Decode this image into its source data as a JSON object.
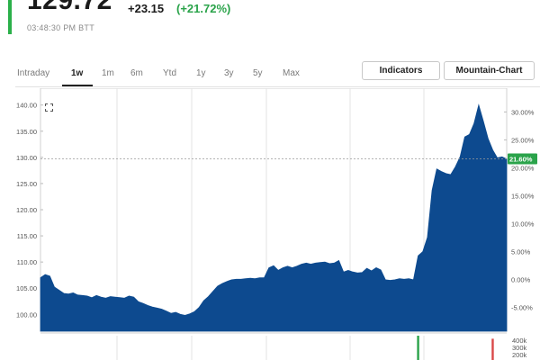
{
  "quote": {
    "price": "129.72",
    "change": "+23.15",
    "change_percent": "(+21.72%)",
    "timestamp": "03:48:30 PM BTT",
    "colors": {
      "positive": "#2aa34a",
      "accent_bar": "#2bb04a"
    }
  },
  "toolbar": {
    "ranges": [
      "Intraday",
      "1w",
      "1m",
      "6m",
      "Ytd",
      "1y",
      "3y",
      "5y",
      "Max"
    ],
    "active_range": "1w",
    "indicators_label": "Indicators",
    "chart_type_label": "Mountain-Chart"
  },
  "chart_data": {
    "type": "area",
    "fill_color": "#0d4a8f",
    "price_axis": {
      "ticks": [
        "140.00",
        "135.00",
        "130.00",
        "125.00",
        "120.00",
        "115.00",
        "110.00",
        "105.00",
        "100.00"
      ],
      "ylim": [
        98.5,
        141.5
      ]
    },
    "percent_axis": {
      "ticks": [
        "30.00%",
        "25.00%",
        "20.00%",
        "15.00%",
        "10.00%",
        "5.00%",
        "0.00%",
        "-5.00%"
      ]
    },
    "current_marker": {
      "value": 129.72,
      "label": "21.60%"
    },
    "volume_axis": {
      "ticks": [
        "400k",
        "300k",
        "200k"
      ]
    },
    "grid": true,
    "values": [
      107.0,
      107.6,
      107.3,
      105.2,
      104.6,
      104.0,
      103.9,
      104.1,
      103.7,
      103.6,
      103.5,
      103.2,
      103.6,
      103.3,
      103.1,
      103.4,
      103.3,
      103.2,
      103.1,
      103.5,
      103.3,
      102.4,
      102.1,
      101.7,
      101.4,
      101.2,
      101.0,
      100.6,
      100.2,
      100.4,
      100.0,
      99.8,
      100.1,
      100.5,
      101.3,
      102.6,
      103.4,
      104.4,
      105.4,
      105.9,
      106.3,
      106.6,
      106.7,
      106.7,
      106.8,
      106.9,
      106.8,
      107.0,
      107.0,
      108.9,
      109.3,
      108.4,
      108.9,
      109.2,
      108.9,
      109.2,
      109.6,
      109.8,
      109.6,
      109.8,
      109.9,
      110.0,
      109.7,
      109.8,
      110.3,
      108.1,
      108.4,
      108.1,
      107.9,
      108.0,
      108.8,
      108.3,
      108.9,
      108.5,
      106.6,
      106.5,
      106.6,
      106.8,
      106.7,
      106.8,
      106.6,
      111.2,
      112.0,
      114.7,
      123.7,
      127.8,
      127.3,
      126.9,
      126.7,
      128.2,
      130.1,
      133.9,
      134.4,
      136.5,
      140.0,
      136.9,
      133.6,
      131.4,
      129.9,
      130.1,
      129.7
    ],
    "volume_bars": [
      {
        "index": 81,
        "value": 400000,
        "color": "#2aa34a"
      },
      {
        "index": 97,
        "value": 350000,
        "color": "#d94848"
      }
    ]
  }
}
